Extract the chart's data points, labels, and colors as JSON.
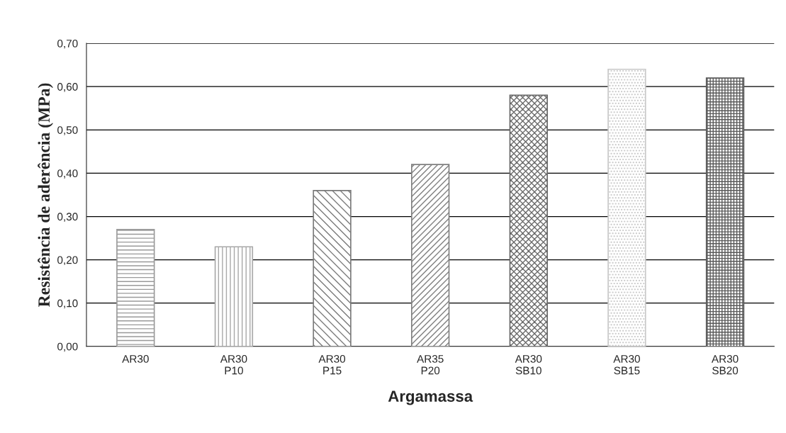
{
  "chart_data": {
    "type": "bar",
    "xlabel": "Argamassa",
    "ylabel": "Resistência de aderência (MPa)",
    "categories": [
      "AR30",
      "AR30\nP10",
      "AR30\nP15",
      "AR35\nP20",
      "AR30\nSB10",
      "AR30\nSB15",
      "AR30\nSB20"
    ],
    "values": [
      0.27,
      0.23,
      0.36,
      0.42,
      0.58,
      0.64,
      0.62
    ],
    "colors": [
      "#9a9a9a",
      "#a8a8a8",
      "#7a7a7a",
      "#808080",
      "#6a6a6a",
      "#c8c8c8",
      "#5a5a5a"
    ],
    "ylim": [
      0,
      0.7
    ],
    "yticks": [
      {
        "value": 0,
        "label": "0,00"
      },
      {
        "value": 0.1,
        "label": "0,10"
      },
      {
        "value": 0.2,
        "label": "0,20"
      },
      {
        "value": 0.3,
        "label": "0,30"
      },
      {
        "value": 0.4,
        "label": "0,40"
      },
      {
        "value": 0.5,
        "label": "0,50"
      },
      {
        "value": 0.6,
        "label": "0,60"
      },
      {
        "value": 0.7,
        "label": "0,70"
      }
    ],
    "grid": "y"
  }
}
